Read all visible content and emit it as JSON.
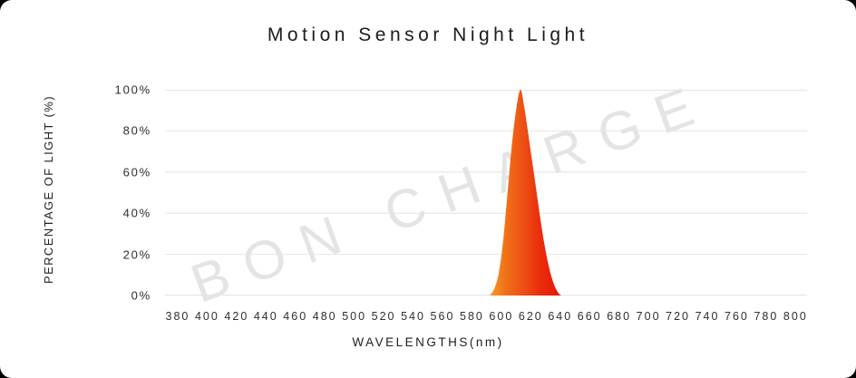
{
  "watermark": {
    "text": "BON CHARGE",
    "color": "#e4e4e4"
  },
  "colors": {
    "card_background": "#ffffff",
    "outside_corners": "#000000",
    "title_text": "#1c1c1c",
    "tick_text": "#2e2e2e",
    "grid": "#e4e4e4"
  },
  "chart_data": {
    "type": "area",
    "title": "Motion Sensor Night Light",
    "xlabel": "WAVELENGTHS(nm)",
    "ylabel": "PERCENTAGE OF LIGHT (%)",
    "x_ticks": [
      380,
      400,
      420,
      440,
      460,
      480,
      500,
      520,
      540,
      560,
      580,
      600,
      620,
      640,
      660,
      680,
      700,
      720,
      740,
      760,
      780,
      800
    ],
    "y_ticks": [
      [
        100,
        "100%"
      ],
      [
        80,
        "80%"
      ],
      [
        60,
        "60%"
      ],
      [
        40,
        "40%"
      ],
      [
        20,
        "20%"
      ],
      [
        0,
        "0%"
      ]
    ],
    "xlim": [
      371.4,
      807.8
    ],
    "ylim": [
      0,
      100
    ],
    "grid": true,
    "legend": false,
    "series": [
      {
        "name": "light-spectrum",
        "peak_nm": 613,
        "peak_percent": 100,
        "points": [
          [
            592,
            0
          ],
          [
            595,
            3
          ],
          [
            598,
            10
          ],
          [
            601,
            25
          ],
          [
            604,
            48
          ],
          [
            607,
            72
          ],
          [
            610,
            90
          ],
          [
            613,
            100
          ],
          [
            615.5,
            92
          ],
          [
            618,
            80
          ],
          [
            621,
            65
          ],
          [
            624,
            50
          ],
          [
            627,
            35
          ],
          [
            630,
            22
          ],
          [
            633,
            12
          ],
          [
            636,
            5
          ],
          [
            639,
            1
          ],
          [
            641,
            0
          ]
        ],
        "gradient": [
          {
            "offset": 0,
            "color": "#F59C2C"
          },
          {
            "offset": 0.2,
            "color": "#F07519"
          },
          {
            "offset": 0.45,
            "color": "#EE5214"
          },
          {
            "offset": 0.7,
            "color": "#EA2D0C"
          },
          {
            "offset": 1,
            "color": "#E61505"
          }
        ]
      }
    ]
  }
}
